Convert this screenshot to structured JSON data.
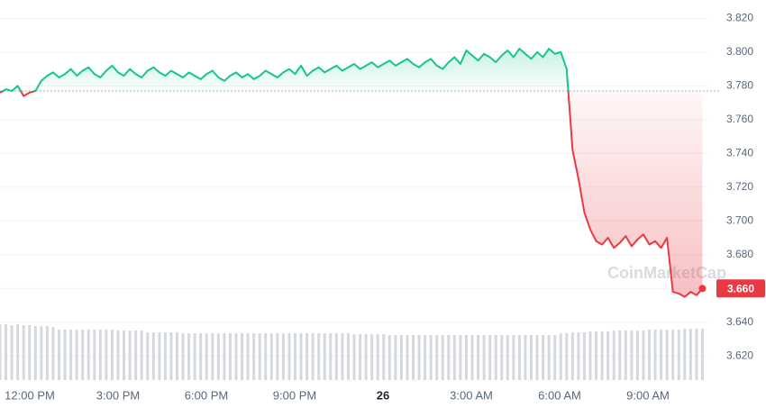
{
  "chart_data": {
    "type": "line",
    "watermark": "CoinMarketCap",
    "baseline": 3.777,
    "up_color": "#16c784",
    "down_color": "#ea3943",
    "volume_color": "#d5d8de",
    "grid": true,
    "ylim": [
      3.61,
      3.825
    ],
    "yticks": [
      {
        "value": 3.62,
        "label": "3.620"
      },
      {
        "value": 3.64,
        "label": "3.640"
      },
      {
        "value": 3.66,
        "label": "3.660"
      },
      {
        "value": 3.68,
        "label": "3.680"
      },
      {
        "value": 3.7,
        "label": "3.700"
      },
      {
        "value": 3.72,
        "label": "3.720"
      },
      {
        "value": 3.74,
        "label": "3.740"
      },
      {
        "value": 3.76,
        "label": "3.760"
      },
      {
        "value": 3.78,
        "label": "3.780"
      },
      {
        "value": 3.8,
        "label": "3.800"
      },
      {
        "value": 3.82,
        "label": "3.820"
      }
    ],
    "xticks": [
      "12:00 PM",
      "3:00 PM",
      "6:00 PM",
      "9:00 PM",
      "26",
      "3:00 AM",
      "6:00 AM",
      "9:00 AM"
    ],
    "last_value": {
      "value": 3.66,
      "label": "3.660"
    },
    "values": [
      3.776,
      3.778,
      3.777,
      3.78,
      3.774,
      3.776,
      3.777,
      3.783,
      3.786,
      3.788,
      3.785,
      3.787,
      3.79,
      3.786,
      3.789,
      3.791,
      3.787,
      3.785,
      3.789,
      3.792,
      3.788,
      3.786,
      3.79,
      3.787,
      3.785,
      3.789,
      3.791,
      3.788,
      3.786,
      3.789,
      3.787,
      3.785,
      3.788,
      3.786,
      3.784,
      3.787,
      3.789,
      3.785,
      3.783,
      3.786,
      3.788,
      3.785,
      3.787,
      3.784,
      3.786,
      3.789,
      3.787,
      3.785,
      3.788,
      3.79,
      3.787,
      3.792,
      3.786,
      3.789,
      3.791,
      3.788,
      3.79,
      3.792,
      3.789,
      3.791,
      3.793,
      3.79,
      3.792,
      3.794,
      3.791,
      3.793,
      3.795,
      3.792,
      3.794,
      3.796,
      3.793,
      3.791,
      3.794,
      3.796,
      3.792,
      3.79,
      3.794,
      3.797,
      3.793,
      3.801,
      3.798,
      3.795,
      3.799,
      3.797,
      3.794,
      3.798,
      3.801,
      3.797,
      3.802,
      3.799,
      3.796,
      3.8,
      3.797,
      3.802,
      3.799,
      3.8,
      3.79,
      3.742,
      3.725,
      3.705,
      3.695,
      3.688,
      3.686,
      3.69,
      3.684,
      3.687,
      3.691,
      3.685,
      3.689,
      3.692,
      3.686,
      3.688,
      3.684,
      3.69,
      3.658,
      3.657,
      3.655,
      3.658,
      3.656,
      3.66
    ],
    "volume": [
      62,
      62,
      61,
      62,
      61,
      61,
      60,
      60,
      60,
      59,
      56,
      56,
      56,
      56,
      56,
      56,
      56,
      56,
      56,
      56,
      55,
      55,
      55,
      55,
      55,
      53,
      53,
      53,
      53,
      53,
      53,
      52,
      52,
      52,
      52,
      52,
      52,
      52,
      52,
      52,
      52,
      52,
      52,
      52,
      52,
      52,
      52,
      52,
      52,
      52,
      52,
      52,
      52,
      52,
      52,
      52,
      52,
      52,
      52,
      52,
      51,
      51,
      51,
      51,
      51,
      51,
      50,
      50,
      50,
      50,
      50,
      50,
      50,
      50,
      50,
      50,
      50,
      50,
      50,
      50,
      50,
      50,
      50,
      50,
      50,
      50,
      50,
      50,
      50,
      50,
      50,
      50,
      50,
      50,
      50,
      52,
      52,
      53,
      53,
      53,
      54,
      54,
      54,
      54,
      55,
      55,
      55,
      55,
      55,
      55,
      56,
      56,
      56,
      56,
      56,
      56,
      57,
      57,
      57,
      57
    ]
  }
}
